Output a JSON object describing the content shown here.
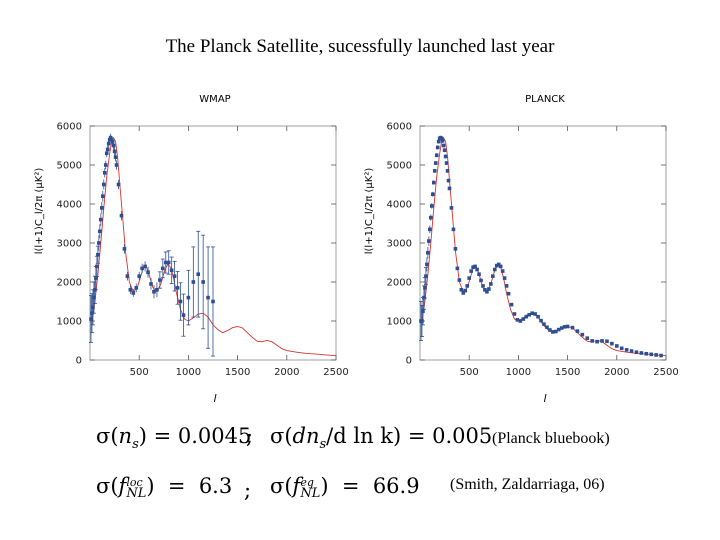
{
  "slide": {
    "title": "The Planck Satellite, sucessfully launched last year"
  },
  "chart_data": [
    {
      "type": "scatter",
      "title": "WMAP",
      "xlabel": "l",
      "ylabel": "l(l+1)C_l/2π (μK²)",
      "xlim": [
        0,
        2500
      ],
      "ylim": [
        0,
        6000
      ],
      "xticks": [
        "500",
        "1000",
        "1500",
        "2000",
        "2500"
      ],
      "yticks": [
        "0",
        "1000",
        "2000",
        "3000",
        "4000",
        "5000",
        "6000"
      ],
      "model_curve": {
        "x": [
          2,
          20,
          50,
          80,
          110,
          140,
          170,
          200,
          220,
          240,
          260,
          280,
          300,
          330,
          360,
          400,
          440,
          480,
          510,
          540,
          570,
          600,
          640,
          680,
          720,
          760,
          790,
          820,
          850,
          880,
          920,
          960,
          1000,
          1050,
          1100,
          1150,
          1200,
          1250,
          1300,
          1350,
          1400,
          1450,
          1500,
          1550,
          1600,
          1650,
          1700,
          1750,
          1800,
          1850,
          1900,
          1950,
          2000,
          2100,
          2200,
          2300,
          2400,
          2500
        ],
        "y": [
          1000,
          1000,
          1500,
          2200,
          3000,
          3900,
          4700,
          5300,
          5600,
          5700,
          5600,
          5200,
          4600,
          3700,
          2800,
          2000,
          1750,
          1850,
          2100,
          2350,
          2400,
          2200,
          1850,
          1750,
          1950,
          2300,
          2450,
          2380,
          2100,
          1700,
          1300,
          1050,
          1000,
          1080,
          1180,
          1200,
          1100,
          900,
          780,
          700,
          760,
          830,
          860,
          820,
          700,
          580,
          480,
          470,
          500,
          470,
          380,
          290,
          240,
          200,
          170,
          150,
          130,
          110
        ]
      },
      "points": {
        "x": [
          10,
          20,
          30,
          40,
          50,
          60,
          70,
          80,
          90,
          100,
          110,
          120,
          130,
          140,
          150,
          160,
          170,
          180,
          190,
          200,
          210,
          220,
          230,
          240,
          250,
          260,
          270,
          290,
          320,
          350,
          380,
          410,
          440,
          470,
          500,
          530,
          560,
          590,
          620,
          650,
          680,
          710,
          740,
          770,
          800,
          830,
          860,
          890,
          920,
          950,
          1000,
          1050,
          1100,
          1150,
          1200,
          1250
        ],
        "y": [
          1050,
          1200,
          1350,
          1600,
          1800,
          2100,
          2400,
          2700,
          3000,
          3300,
          3600,
          3900,
          4200,
          4500,
          4800,
          5000,
          5300,
          5400,
          5550,
          5650,
          5700,
          5650,
          5600,
          5500,
          5350,
          5200,
          5000,
          4500,
          3700,
          2850,
          2150,
          1800,
          1720,
          1850,
          2150,
          2350,
          2400,
          2250,
          1950,
          1750,
          1800,
          2050,
          2350,
          2500,
          2500,
          2300,
          2150,
          1850,
          1500,
          1150,
          1600,
          2000,
          2200,
          2000,
          1600,
          1500
        ],
        "err": [
          600,
          500,
          450,
          400,
          350,
          300,
          260,
          220,
          200,
          180,
          160,
          150,
          140,
          130,
          120,
          110,
          100,
          100,
          100,
          100,
          100,
          100,
          100,
          100,
          110,
          110,
          120,
          120,
          120,
          120,
          110,
          110,
          100,
          110,
          110,
          120,
          130,
          140,
          150,
          170,
          190,
          210,
          240,
          270,
          300,
          340,
          380,
          420,
          480,
          540,
          700,
          900,
          1100,
          1200,
          1300,
          1400
        ]
      }
    },
    {
      "type": "scatter",
      "title": "PLANCK",
      "xlabel": "l",
      "ylabel": "l(l+1)C_l/2π (μK²)",
      "xlim": [
        0,
        2500
      ],
      "ylim": [
        0,
        6000
      ],
      "xticks": [
        "500",
        "1000",
        "1500",
        "2000",
        "2500"
      ],
      "yticks": [
        "0",
        "1000",
        "2000",
        "3000",
        "4000",
        "5000",
        "6000"
      ],
      "model_curve": {
        "x": [
          2,
          20,
          50,
          80,
          110,
          140,
          170,
          200,
          220,
          240,
          260,
          280,
          300,
          330,
          360,
          400,
          440,
          480,
          510,
          540,
          570,
          600,
          640,
          680,
          720,
          760,
          790,
          820,
          850,
          880,
          920,
          960,
          1000,
          1050,
          1100,
          1150,
          1200,
          1250,
          1300,
          1350,
          1400,
          1450,
          1500,
          1550,
          1600,
          1650,
          1700,
          1750,
          1800,
          1850,
          1900,
          1950,
          2000,
          2100,
          2200,
          2300,
          2400,
          2500
        ],
        "y": [
          1000,
          1000,
          1500,
          2200,
          3000,
          3900,
          4700,
          5300,
          5600,
          5700,
          5600,
          5200,
          4600,
          3700,
          2800,
          2000,
          1750,
          1850,
          2100,
          2350,
          2400,
          2200,
          1850,
          1750,
          1950,
          2300,
          2450,
          2380,
          2100,
          1700,
          1300,
          1050,
          1000,
          1080,
          1180,
          1200,
          1100,
          900,
          780,
          700,
          760,
          830,
          860,
          820,
          700,
          580,
          480,
          470,
          500,
          470,
          380,
          290,
          240,
          200,
          170,
          150,
          130,
          110
        ]
      },
      "points": {
        "x": [
          10,
          20,
          30,
          40,
          50,
          60,
          70,
          80,
          90,
          100,
          110,
          120,
          130,
          140,
          150,
          160,
          170,
          180,
          190,
          200,
          210,
          220,
          230,
          240,
          250,
          260,
          270,
          280,
          290,
          300,
          320,
          340,
          360,
          380,
          400,
          420,
          440,
          460,
          480,
          500,
          520,
          540,
          560,
          580,
          600,
          620,
          640,
          660,
          680,
          700,
          720,
          740,
          760,
          780,
          800,
          820,
          840,
          860,
          880,
          900,
          930,
          960,
          990,
          1020,
          1050,
          1080,
          1110,
          1140,
          1170,
          1200,
          1230,
          1260,
          1290,
          1320,
          1350,
          1380,
          1410,
          1440,
          1470,
          1500,
          1550,
          1600,
          1650,
          1700,
          1750,
          1800,
          1850,
          1900,
          1950,
          2000,
          2050,
          2100,
          2150,
          2200,
          2250,
          2300,
          2350,
          2400,
          2450
        ],
        "y": [
          1000,
          1000,
          1250,
          1600,
          1850,
          2150,
          2450,
          2750,
          3050,
          3350,
          3650,
          3950,
          4250,
          4550,
          4850,
          5050,
          5250,
          5450,
          5600,
          5680,
          5700,
          5680,
          5620,
          5500,
          5380,
          5220,
          5050,
          4850,
          4600,
          4400,
          3900,
          3350,
          2850,
          2350,
          2050,
          1800,
          1720,
          1780,
          1900,
          2100,
          2280,
          2380,
          2400,
          2320,
          2200,
          2040,
          1900,
          1800,
          1750,
          1820,
          1950,
          2150,
          2320,
          2420,
          2450,
          2400,
          2280,
          2100,
          1900,
          1700,
          1420,
          1180,
          1030,
          1000,
          1050,
          1110,
          1160,
          1200,
          1180,
          1110,
          1010,
          920,
          840,
          770,
          720,
          730,
          780,
          820,
          850,
          860,
          830,
          740,
          650,
          560,
          490,
          470,
          490,
          480,
          420,
          360,
          300,
          260,
          230,
          200,
          180,
          160,
          145,
          130,
          115
        ],
        "err": [
          500,
          400,
          350,
          300,
          260,
          220,
          180,
          150,
          120,
          100,
          80,
          70,
          60,
          55,
          50,
          50,
          50,
          50,
          50,
          50,
          50,
          50,
          50,
          50,
          50,
          50,
          50,
          50,
          50,
          50,
          45,
          40,
          40,
          40,
          35,
          35,
          35,
          35,
          35,
          35,
          35,
          35,
          35,
          35,
          35,
          35,
          35,
          35,
          35,
          35,
          35,
          35,
          35,
          35,
          35,
          35,
          35,
          35,
          35,
          35,
          35,
          35,
          35,
          35,
          35,
          35,
          35,
          35,
          35,
          35,
          35,
          35,
          35,
          35,
          35,
          35,
          35,
          35,
          35,
          35,
          35,
          35,
          35,
          35,
          35,
          35,
          35,
          35,
          35,
          35,
          35,
          35,
          35,
          35,
          35,
          35,
          35,
          35,
          35
        ]
      }
    }
  ],
  "equations": {
    "row1_left": {
      "head": "σ(",
      "var": "n",
      "sub": "s",
      "tail": ") = 0.0045"
    },
    "row1_sep": ";",
    "row1_right": {
      "head": "σ(",
      "var": "dn",
      "sub": "s",
      "tail": "/d ln k) = 0.005"
    },
    "row2_left": {
      "head": "σ(",
      "var": "f",
      "sup": "loc",
      "sub": "NL",
      "tail": ")  =  6.3"
    },
    "row2_sep": ";",
    "row2_right": {
      "head": "σ(",
      "var": "f",
      "sup": "eq",
      "sub": "NL",
      "tail": ")  =  66.9"
    }
  },
  "refs": {
    "row1": "(Planck bluebook)",
    "row2": "(Smith, Zaldarriaga, 06)"
  }
}
